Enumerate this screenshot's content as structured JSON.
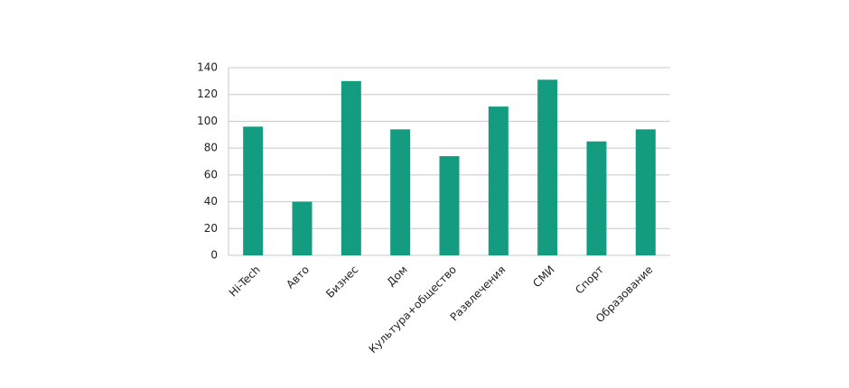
{
  "chart_data": {
    "type": "bar",
    "categories": [
      "Hi-Tech",
      "Авто",
      "Бизнес",
      "Дом",
      "Культура+общество",
      "Развлечения",
      "СМИ",
      "Спорт",
      "Образование"
    ],
    "values": [
      96,
      40,
      130,
      94,
      74,
      111,
      131,
      85,
      94
    ],
    "color": "#139c7f",
    "ylim": [
      0,
      140
    ],
    "yticks": [
      0,
      20,
      40,
      60,
      80,
      100,
      120,
      140
    ],
    "grid": true
  }
}
